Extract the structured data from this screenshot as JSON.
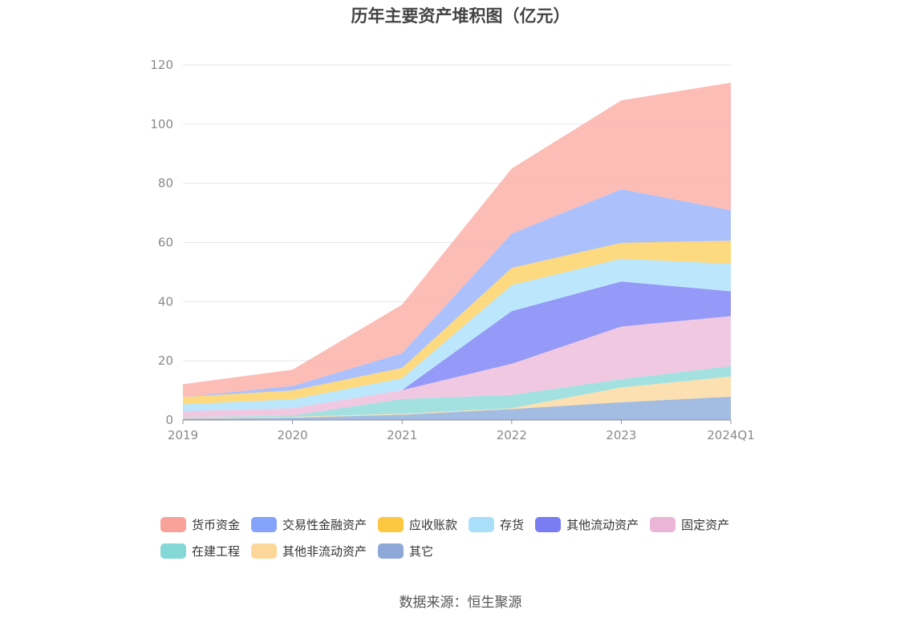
{
  "chart_data": {
    "type": "area",
    "stacked": true,
    "title": "历年主要资产堆积图（亿元）",
    "categories": [
      "2019",
      "2020",
      "2021",
      "2022",
      "2023",
      "2024Q1"
    ],
    "y_ticks": [
      "0",
      "20",
      "40",
      "60",
      "80",
      "100",
      "120"
    ],
    "ylim": [
      0,
      120
    ],
    "legend_position": "bottom",
    "series": [
      {
        "name": "其它",
        "color": "#8eaedb",
        "values": [
          0.5,
          0.8,
          1.8,
          3.7,
          6.0,
          7.9
        ]
      },
      {
        "name": "其他非流动资产",
        "color": "#fdd9a0",
        "values": [
          0.3,
          0.3,
          0.3,
          0.3,
          5.0,
          6.8
        ]
      },
      {
        "name": "在建工程",
        "color": "#8fdbd9",
        "values": [
          0.2,
          0.4,
          5.0,
          4.5,
          2.8,
          3.5
        ]
      },
      {
        "name": "固定资产",
        "color": "#eebcdb",
        "values": [
          2.0,
          2.5,
          3.0,
          10.5,
          17.8,
          16.9
        ]
      },
      {
        "name": "其他流动资产",
        "color": "#7e83f5",
        "values": [
          0.0,
          0.0,
          0.0,
          17.8,
          15.2,
          8.4
        ]
      },
      {
        "name": "存货",
        "color": "#ace0fa",
        "values": [
          2.3,
          3.0,
          4.0,
          8.8,
          7.7,
          9.3
        ]
      },
      {
        "name": "应收账款",
        "color": "#fdd163",
        "values": [
          2.5,
          3.0,
          3.5,
          5.8,
          5.4,
          7.8
        ]
      },
      {
        "name": "交易性金融资产",
        "color": "#9ab3fb",
        "values": [
          0.0,
          1.5,
          5.0,
          11.6,
          18.1,
          10.3
        ]
      },
      {
        "name": "货币资金",
        "color": "#fbaea7",
        "values": [
          4.3,
          5.5,
          16.4,
          22.0,
          30.0,
          43.1
        ]
      }
    ]
  },
  "legend": {
    "row1": [
      {
        "label": "货币资金",
        "color": "#f8a29a"
      },
      {
        "label": "交易性金融资产",
        "color": "#85a3fb"
      },
      {
        "label": "应收账款",
        "color": "#fdc742"
      },
      {
        "label": "存货",
        "color": "#a9dff9"
      },
      {
        "label": "其他流动资产",
        "color": "#7a7cf2"
      },
      {
        "label": "固定资产",
        "color": "#ebb5d8"
      }
    ],
    "row2": [
      {
        "label": "在建工程",
        "color": "#84d8d5"
      },
      {
        "label": "其他非流动资产",
        "color": "#fdd79a"
      },
      {
        "label": "其它",
        "color": "#8ea9d8"
      }
    ]
  },
  "source": "数据来源：恒生聚源"
}
